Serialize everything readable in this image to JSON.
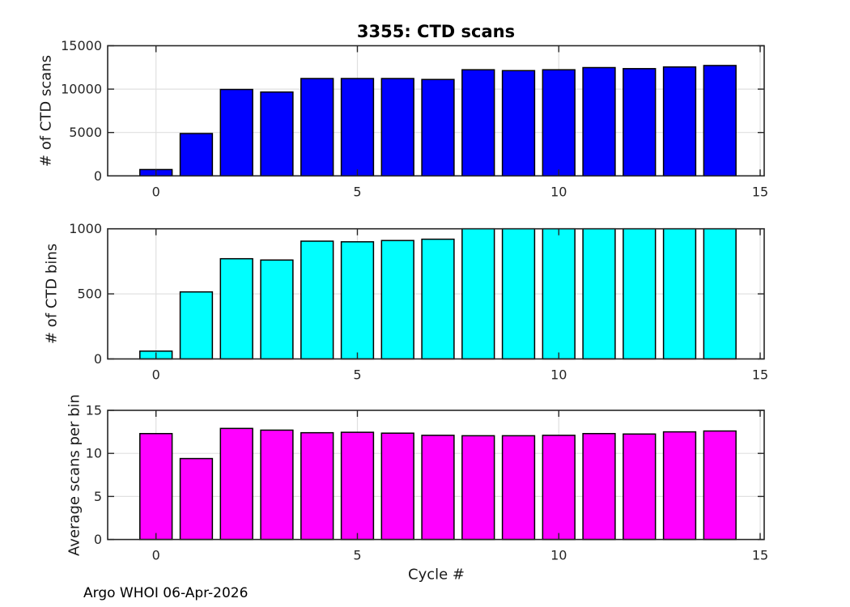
{
  "figure": {
    "title": "3355: CTD scans",
    "xlabel": "Cycle #",
    "footer": "Argo WHOI 06-Apr-2026"
  },
  "colors": {
    "scans_bar": "#0000ff",
    "bins_bar": "#00ffff",
    "avg_bar": "#ff00ff",
    "bar_edge": "#000000",
    "axis": "#262626",
    "grid": "#e0e0e0",
    "background": "#ffffff"
  },
  "chart_data": [
    {
      "type": "bar",
      "name": "ctd-scans",
      "title": "3355: CTD scans",
      "ylabel": "# of CTD scans",
      "categories": [
        0,
        1,
        2,
        3,
        4,
        5,
        6,
        7,
        8,
        9,
        10,
        11,
        12,
        13,
        14
      ],
      "values": [
        730,
        4880,
        9960,
        9660,
        11220,
        11220,
        11220,
        11110,
        12230,
        12130,
        12230,
        12480,
        12360,
        12550,
        12720
      ],
      "ylim": [
        0,
        15000
      ],
      "yticks": [
        0,
        5000,
        10000,
        15000
      ],
      "xlim": [
        -1.2,
        15.1
      ],
      "xticks": [
        0,
        5,
        10,
        15
      ],
      "grid": true,
      "bar_width": 0.8,
      "bar_color": "#0000ff"
    },
    {
      "type": "bar",
      "name": "ctd-bins",
      "ylabel": "# of CTD bins",
      "categories": [
        0,
        1,
        2,
        3,
        4,
        5,
        6,
        7,
        8,
        9,
        10,
        11,
        12,
        13,
        14
      ],
      "values": [
        60,
        515,
        770,
        760,
        905,
        900,
        910,
        920,
        1015,
        1007,
        1012,
        1015,
        1007,
        1007,
        1010
      ],
      "ylim": [
        0,
        1000
      ],
      "yticks": [
        0,
        500,
        1000
      ],
      "xlim": [
        -1.2,
        15.1
      ],
      "xticks": [
        0,
        5,
        10,
        15
      ],
      "grid": true,
      "bar_width": 0.8,
      "bar_color": "#00ffff",
      "note": "bars for cycles 8-14 are clipped at the 1000 axis limit"
    },
    {
      "type": "bar",
      "name": "avg-scans-per-bin",
      "ylabel": "Average scans per bin",
      "xlabel": "Cycle #",
      "categories": [
        0,
        1,
        2,
        3,
        4,
        5,
        6,
        7,
        8,
        9,
        10,
        11,
        12,
        13,
        14
      ],
      "values": [
        12.3,
        9.4,
        12.9,
        12.7,
        12.4,
        12.45,
        12.35,
        12.1,
        12.05,
        12.05,
        12.1,
        12.3,
        12.25,
        12.5,
        12.6
      ],
      "ylim": [
        0,
        15
      ],
      "yticks": [
        0,
        5,
        10,
        15
      ],
      "xlim": [
        -1.2,
        15.1
      ],
      "xticks": [
        0,
        5,
        10,
        15
      ],
      "grid": true,
      "bar_width": 0.8,
      "bar_color": "#ff00ff"
    }
  ]
}
